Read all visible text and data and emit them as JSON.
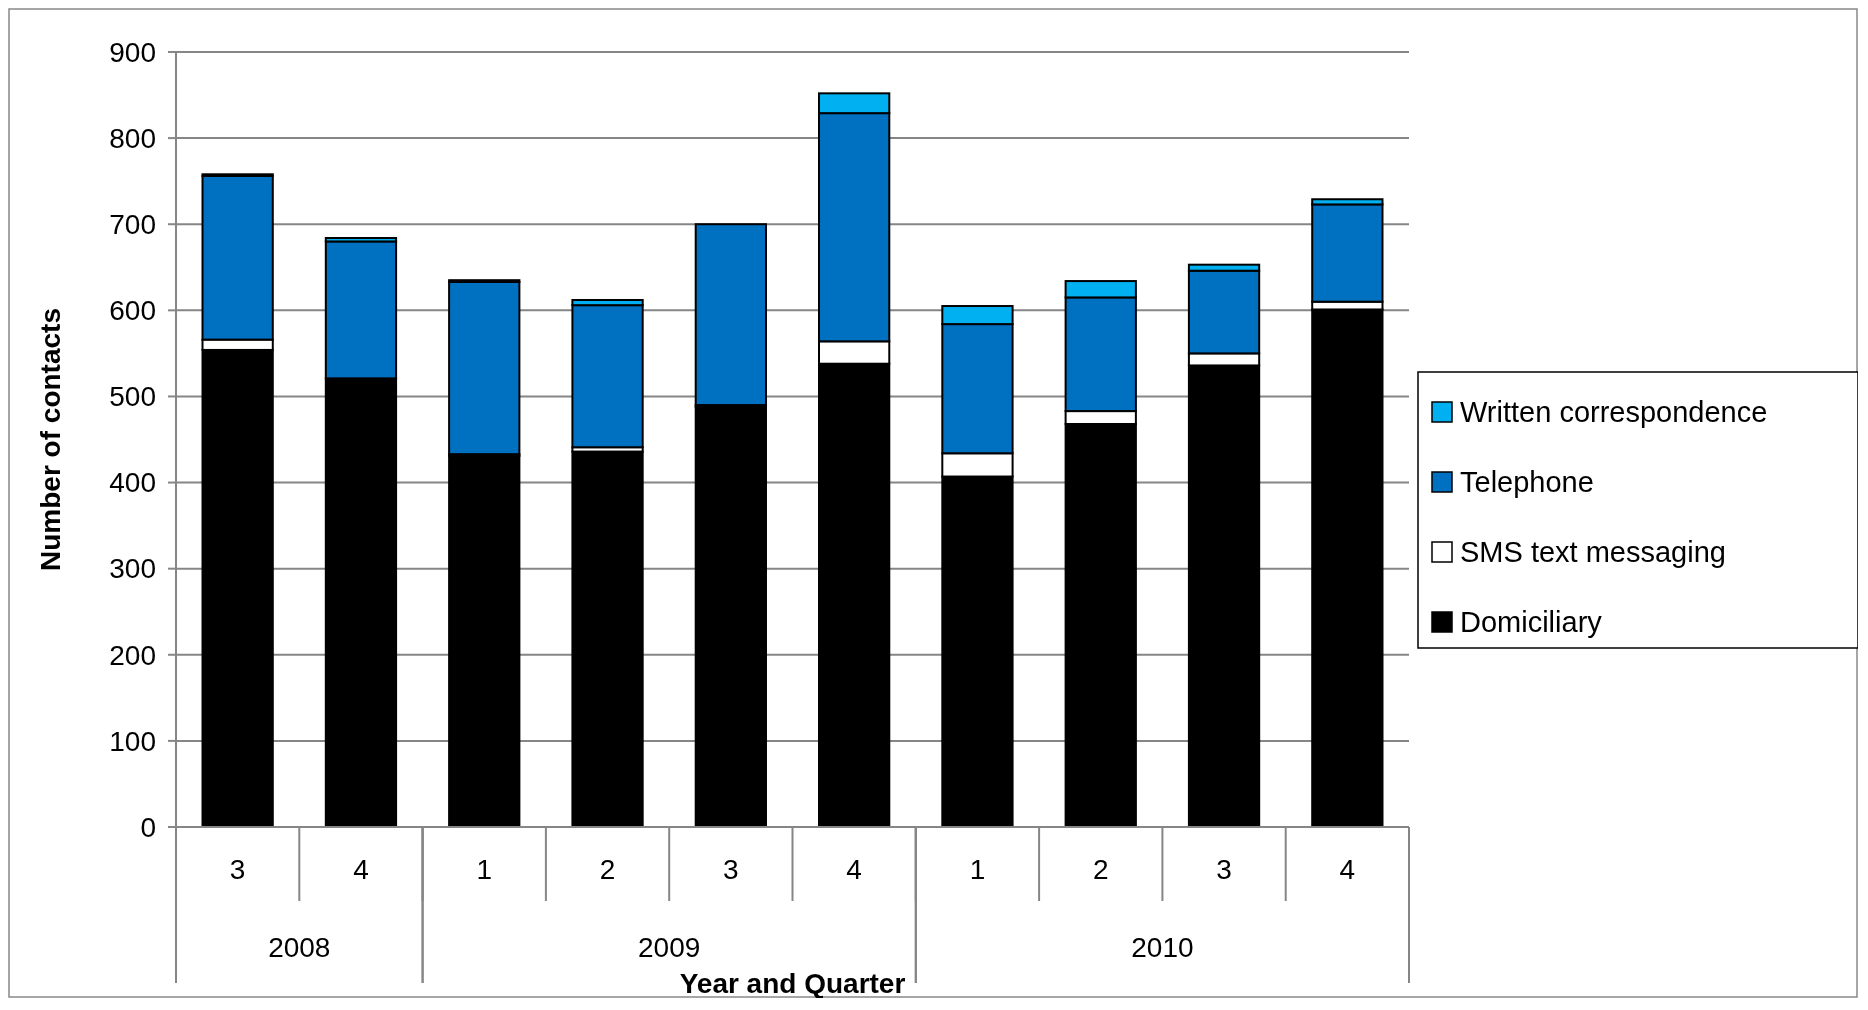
{
  "chart_data": {
    "type": "bar",
    "stacked": true,
    "xlabel": "Year and Quarter",
    "ylabel": "Number of contacts",
    "categories": [
      "3",
      "4",
      "1",
      "2",
      "3",
      "4",
      "1",
      "2",
      "3",
      "4"
    ],
    "annotations": [
      "2008",
      "2009",
      "2010"
    ],
    "series": [
      {
        "name": "Domiciliary",
        "color": "#000000",
        "values": [
          554,
          521,
          431,
          436,
          488,
          538,
          407,
          468,
          536,
          601
        ]
      },
      {
        "name": "SMS text messaging",
        "color": "#ffffff",
        "values": [
          12,
          null,
          2,
          5,
          2,
          26,
          27,
          15,
          14,
          9
        ]
      },
      {
        "name": "Telephone",
        "color": "#0070c0",
        "values": [
          190,
          159,
          200,
          165,
          210,
          265,
          150,
          132,
          96,
          113
        ]
      },
      {
        "name": "Written correspondence",
        "color": "#00b0f0",
        "values": [
          2,
          4,
          2,
          6,
          0,
          23,
          21,
          19,
          7,
          6
        ]
      }
    ],
    "ylim": [
      0,
      900
    ],
    "yticks": [
      0,
      100,
      200,
      300,
      400,
      500,
      600,
      700,
      800,
      900
    ],
    "grid": "y",
    "legend": "right"
  }
}
